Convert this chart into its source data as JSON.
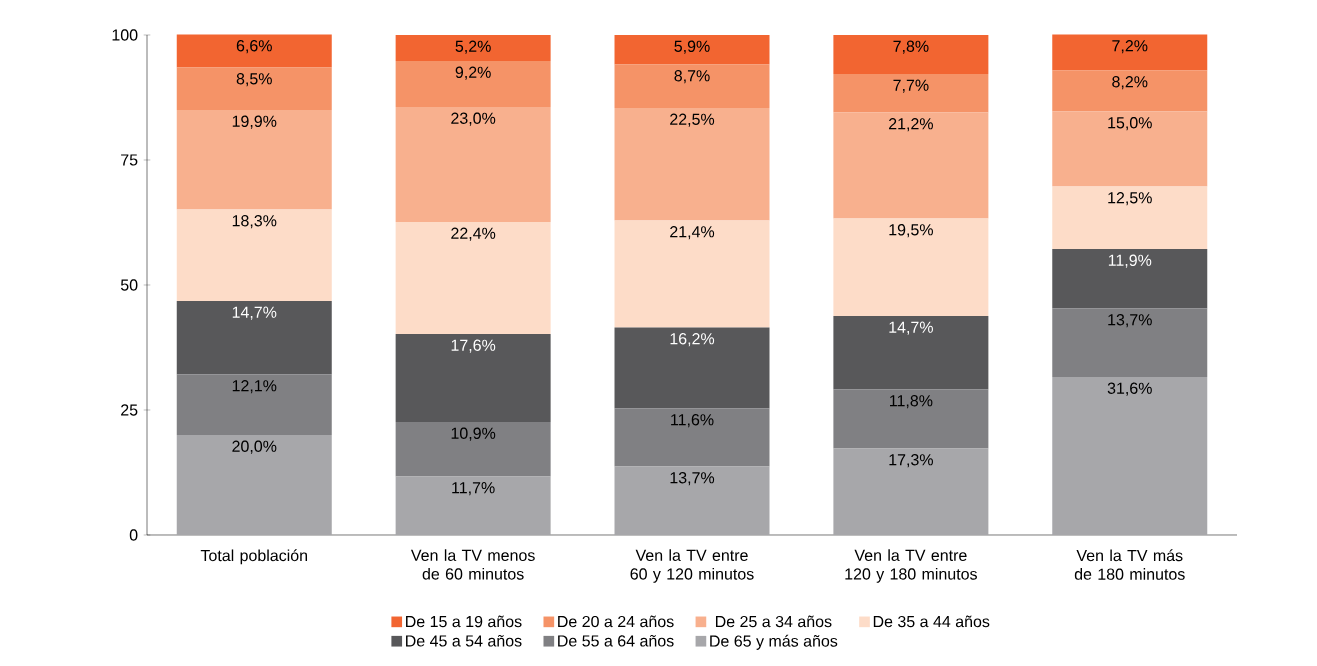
{
  "chart_data": {
    "type": "bar",
    "stacked": true,
    "categories": [
      "Total población",
      "Ven la TV menos de 60 minutos",
      "Ven la TV entre 60 y 120 minutos",
      "Ven la TV entre 120 y 180 minutos",
      "Ven la TV más de 180 minutos"
    ],
    "ylim": [
      0,
      100
    ],
    "yticks": [
      0,
      25,
      50,
      75,
      100
    ],
    "grid": false,
    "legend": "bottom",
    "series": [
      {
        "name": "De 65 y más años",
        "color": "#a7a7aa",
        "values": [
          20.0,
          11.7,
          13.7,
          17.3,
          31.6
        ],
        "value_labels": [
          "20,0%",
          "11,7%",
          "13,7%",
          "17,3%",
          "31,6%"
        ]
      },
      {
        "name": "De 55 a 64 años",
        "color": "#808083",
        "values": [
          12.1,
          10.9,
          11.6,
          11.8,
          13.7
        ],
        "value_labels": [
          "12,1%",
          "10,9%",
          "11,6%",
          "11,8%",
          "13,7%"
        ]
      },
      {
        "name": "De 45 a 54 años",
        "color": "#58585a",
        "values": [
          14.7,
          17.6,
          16.2,
          14.7,
          11.9
        ],
        "value_labels": [
          "14,7%",
          "17,6%",
          "16,2%",
          "14,7%",
          "11,9%"
        ]
      },
      {
        "name": "De 35 a 44 años",
        "color": "#fddcc8",
        "values": [
          18.3,
          22.4,
          21.4,
          19.5,
          12.5
        ],
        "value_labels": [
          "18,3%",
          "22,4%",
          "21,4%",
          "19,5%",
          "12,5%"
        ]
      },
      {
        "name": "De 25 a 34 años",
        "color": "#f8b08e",
        "values": [
          19.9,
          23.0,
          22.5,
          21.2,
          15.0
        ],
        "value_labels": [
          "19,9%",
          "23,0%",
          "22,5%",
          "21,2%",
          "15,0%"
        ]
      },
      {
        "name": "De 20 a 24 años",
        "color": "#f59367",
        "values": [
          8.5,
          9.2,
          8.7,
          7.7,
          8.2
        ],
        "value_labels": [
          "8,5%",
          "9,2%",
          "8,7%",
          "7,7%",
          "8,2%"
        ]
      },
      {
        "name": "De 15 a 19 años",
        "color": "#f26531",
        "values": [
          6.6,
          5.2,
          5.9,
          7.8,
          7.2
        ],
        "value_labels": [
          "6,6%",
          "5,2%",
          "5,9%",
          "7,8%",
          "7,2%"
        ]
      }
    ]
  }
}
